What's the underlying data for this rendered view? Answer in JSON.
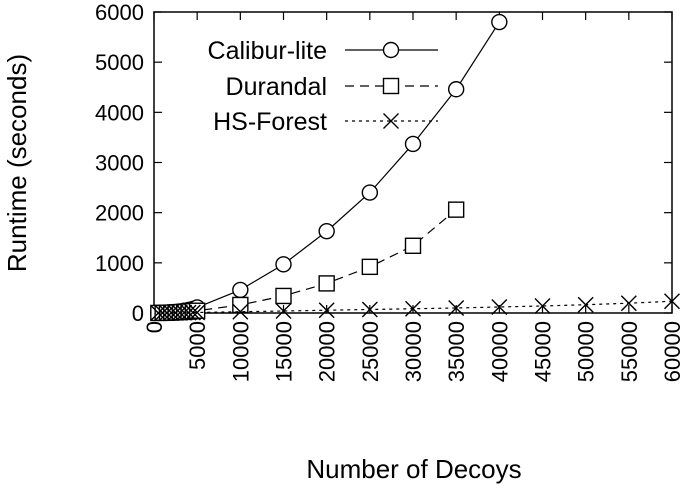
{
  "chart_data": {
    "type": "line",
    "xlabel": "Number of Decoys",
    "ylabel": "Runtime (seconds)",
    "xlim": [
      0,
      60000
    ],
    "ylim": [
      0,
      6000
    ],
    "xticks": [
      0,
      5000,
      10000,
      15000,
      20000,
      25000,
      30000,
      35000,
      40000,
      45000,
      50000,
      55000,
      60000
    ],
    "yticks": [
      0,
      1000,
      2000,
      3000,
      4000,
      5000,
      6000
    ],
    "grid": false,
    "legend_position": "top-left",
    "series": [
      {
        "name": "Calibur-lite",
        "marker": "circle",
        "line_style": "solid",
        "x": [
          500,
          1000,
          1500,
          2000,
          2500,
          3000,
          3500,
          4000,
          4500,
          5000,
          10000,
          15000,
          20000,
          25000,
          30000,
          35000,
          40000
        ],
        "y": [
          2,
          5,
          9,
          15,
          22,
          32,
          45,
          60,
          80,
          110,
          460,
          970,
          1630,
          2400,
          3370,
          4460,
          5800
        ]
      },
      {
        "name": "Durandal",
        "marker": "square",
        "line_style": "dashed",
        "x": [
          500,
          1000,
          1500,
          2000,
          2500,
          3000,
          3500,
          4000,
          4500,
          5000,
          10000,
          15000,
          20000,
          25000,
          30000,
          35000
        ],
        "y": [
          1,
          3,
          5,
          8,
          12,
          17,
          22,
          28,
          35,
          45,
          160,
          340,
          590,
          920,
          1340,
          2060
        ]
      },
      {
        "name": "HS-Forest",
        "marker": "x",
        "line_style": "dotted",
        "x": [
          500,
          1000,
          1500,
          2000,
          2500,
          3000,
          3500,
          4000,
          4500,
          5000,
          10000,
          15000,
          20000,
          25000,
          30000,
          35000,
          40000,
          45000,
          50000,
          55000,
          60000
        ],
        "y": [
          1,
          2,
          3,
          4,
          5,
          6,
          7,
          8,
          9,
          10,
          25,
          40,
          55,
          70,
          85,
          100,
          120,
          140,
          165,
          195,
          235
        ]
      }
    ]
  }
}
